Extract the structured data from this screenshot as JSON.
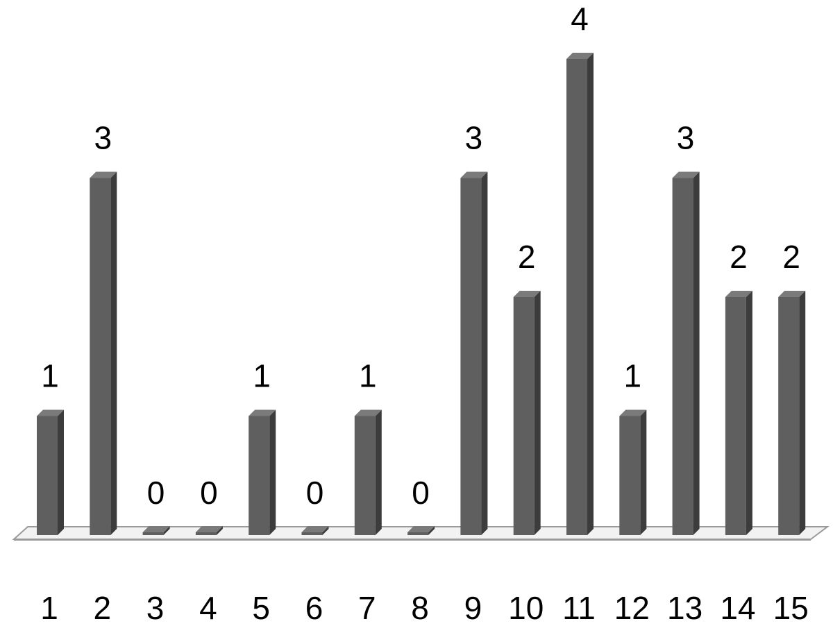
{
  "chart_data": {
    "type": "bar",
    "style": "3d-column",
    "categories": [
      "1",
      "2",
      "3",
      "4",
      "5",
      "6",
      "7",
      "8",
      "9",
      "10",
      "11",
      "12",
      "13",
      "14",
      "15"
    ],
    "values": [
      1,
      3,
      0,
      0,
      1,
      0,
      1,
      0,
      3,
      2,
      4,
      1,
      3,
      2,
      2
    ],
    "title": "",
    "xlabel": "",
    "ylabel": "",
    "ylim": [
      0,
      4
    ],
    "grid": false,
    "legend": "none",
    "data_labels": true,
    "colors": {
      "bar_front": "#5f5f5f",
      "bar_side": "#3c3c3c",
      "bar_top": "#7a7a7a",
      "floor_fill": "#f2f2f2",
      "floor_stroke": "#9a9a9a"
    }
  }
}
